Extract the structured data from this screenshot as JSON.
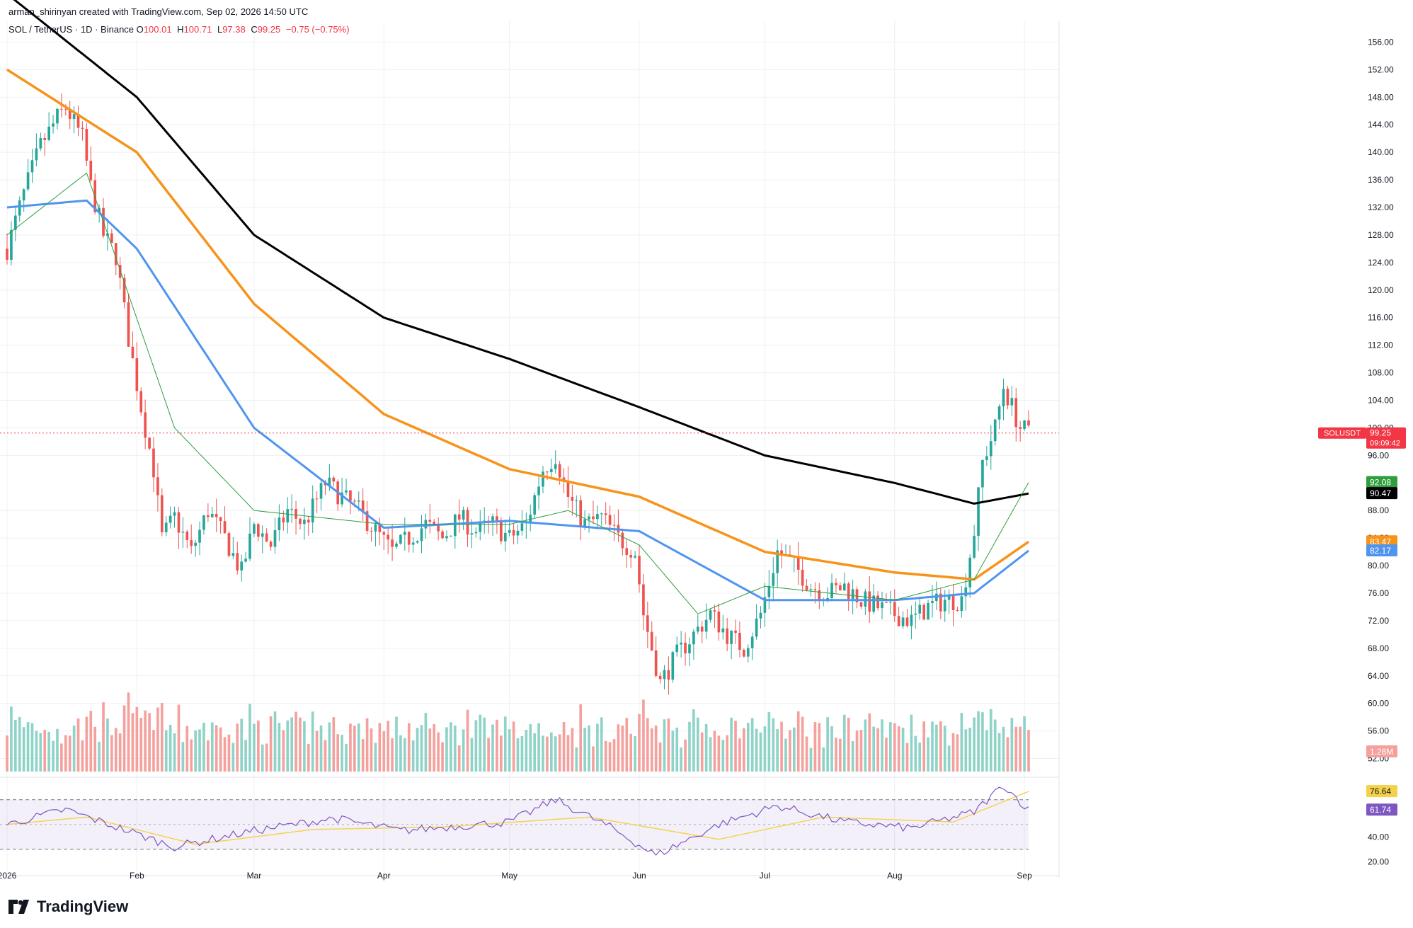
{
  "header": {
    "creator": "arman_shirinyan created with TradingView.com, Sep 02, 2026 14:50 UTC",
    "symbol": "SOL / TetherUS · 1D · Binance",
    "open_label": "O",
    "open": "100.01",
    "high_label": "H",
    "high": "100.71",
    "low_label": "L",
    "low": "97.38",
    "close_label": "C",
    "close": "99.25",
    "change": "−0.75 (−0.75%)"
  },
  "footer": {
    "brand": "TradingView",
    "logo_icon": "tradingview-logo-icon"
  },
  "colors": {
    "up": "#26a69a",
    "down": "#ef5350",
    "vol_up": "#8fd3c8",
    "vol_down": "#f4a19e",
    "ma200": "#000000",
    "ma100": "#f7931a",
    "ma50": "#4f95f0",
    "ma20": "#2e9e3e",
    "rsi": "#7e57c2",
    "rsi_ma": "#f5d14a",
    "grid": "#eef0f3"
  },
  "chart_data": {
    "type": "candlestick",
    "ylim": [
      50,
      158
    ],
    "y_ticks": [
      "156.00",
      "152.00",
      "148.00",
      "144.00",
      "140.00",
      "136.00",
      "132.00",
      "128.00",
      "124.00",
      "120.00",
      "116.00",
      "112.00",
      "108.00",
      "104.00",
      "100.00",
      "96.00",
      "88.00",
      "84.00",
      "80.00",
      "76.00",
      "72.00",
      "68.00",
      "64.00",
      "60.00",
      "56.00",
      "52.00"
    ],
    "x_ticks": [
      {
        "label": "2026",
        "date": "2026-01-01"
      },
      {
        "label": "Feb",
        "date": "2026-02-01"
      },
      {
        "label": "Mar",
        "date": "2026-03-01"
      },
      {
        "label": "Apr",
        "date": "2026-04-01"
      },
      {
        "label": "May",
        "date": "2026-05-01"
      },
      {
        "label": "Jun",
        "date": "2026-06-01"
      },
      {
        "label": "Jul",
        "date": "2026-07-01"
      },
      {
        "label": "Aug",
        "date": "2026-08-01"
      },
      {
        "label": "Sep",
        "date": "2026-09-01"
      }
    ],
    "close_path": [
      [
        "2026-01-01",
        126
      ],
      [
        "2026-01-05",
        134
      ],
      [
        "2026-01-09",
        141
      ],
      [
        "2026-01-13",
        145
      ],
      [
        "2026-01-15",
        146.5
      ],
      [
        "2026-01-19",
        142
      ],
      [
        "2026-01-21",
        135
      ],
      [
        "2026-01-24",
        128
      ],
      [
        "2026-01-27",
        125
      ],
      [
        "2026-01-30",
        113
      ],
      [
        "2026-02-02",
        103
      ],
      [
        "2026-02-05",
        94
      ],
      [
        "2026-02-07",
        84
      ],
      [
        "2026-02-10",
        87
      ],
      [
        "2026-02-14",
        82
      ],
      [
        "2026-02-18",
        88
      ],
      [
        "2026-02-22",
        84
      ],
      [
        "2026-02-26",
        79
      ],
      [
        "2026-03-01",
        86
      ],
      [
        "2026-03-05",
        83
      ],
      [
        "2026-03-09",
        88
      ],
      [
        "2026-03-13",
        86
      ],
      [
        "2026-03-18",
        92
      ],
      [
        "2026-03-22",
        90
      ],
      [
        "2026-03-26",
        88
      ],
      [
        "2026-03-30",
        85
      ],
      [
        "2026-04-03",
        82
      ],
      [
        "2026-04-07",
        84
      ],
      [
        "2026-04-11",
        86
      ],
      [
        "2026-04-15",
        84
      ],
      [
        "2026-04-19",
        87
      ],
      [
        "2026-04-23",
        85
      ],
      [
        "2026-04-27",
        86
      ],
      [
        "2026-05-01",
        84
      ],
      [
        "2026-05-05",
        86
      ],
      [
        "2026-05-09",
        94
      ],
      [
        "2026-05-12",
        96
      ],
      [
        "2026-05-15",
        90
      ],
      [
        "2026-05-19",
        86
      ],
      [
        "2026-05-23",
        87
      ],
      [
        "2026-05-27",
        84
      ],
      [
        "2026-05-31",
        82
      ],
      [
        "2026-06-02",
        73
      ],
      [
        "2026-06-04",
        68
      ],
      [
        "2026-06-06",
        63
      ],
      [
        "2026-06-10",
        67
      ],
      [
        "2026-06-14",
        70
      ],
      [
        "2026-06-18",
        73
      ],
      [
        "2026-06-22",
        70
      ],
      [
        "2026-06-26",
        68
      ],
      [
        "2026-06-30",
        73
      ],
      [
        "2026-07-04",
        82
      ],
      [
        "2026-07-08",
        80
      ],
      [
        "2026-07-12",
        77
      ],
      [
        "2026-07-16",
        76
      ],
      [
        "2026-07-20",
        77
      ],
      [
        "2026-07-24",
        75
      ],
      [
        "2026-07-28",
        74
      ],
      [
        "2026-08-01",
        73
      ],
      [
        "2026-08-05",
        72
      ],
      [
        "2026-08-09",
        74
      ],
      [
        "2026-08-13",
        75
      ],
      [
        "2026-08-17",
        75
      ],
      [
        "2026-08-20",
        85
      ],
      [
        "2026-08-22",
        95
      ],
      [
        "2026-08-25",
        100
      ],
      [
        "2026-08-27",
        106
      ],
      [
        "2026-08-29",
        103
      ],
      [
        "2026-08-31",
        100
      ],
      [
        "2026-09-02",
        99.25
      ]
    ],
    "ma200_path": [
      [
        "2026-01-01",
        163
      ],
      [
        "2026-02-01",
        148
      ],
      [
        "2026-03-01",
        128
      ],
      [
        "2026-04-01",
        116
      ],
      [
        "2026-05-01",
        110
      ],
      [
        "2026-06-01",
        103
      ],
      [
        "2026-07-01",
        96
      ],
      [
        "2026-08-01",
        92
      ],
      [
        "2026-08-20",
        89
      ],
      [
        "2026-09-02",
        90.47
      ]
    ],
    "ma100_path": [
      [
        "2026-01-01",
        152
      ],
      [
        "2026-02-01",
        140
      ],
      [
        "2026-03-01",
        118
      ],
      [
        "2026-04-01",
        102
      ],
      [
        "2026-05-01",
        94
      ],
      [
        "2026-06-01",
        90
      ],
      [
        "2026-07-01",
        82
      ],
      [
        "2026-08-01",
        79
      ],
      [
        "2026-08-20",
        78
      ],
      [
        "2026-09-02",
        83.47
      ]
    ],
    "ma50_path": [
      [
        "2026-01-01",
        132
      ],
      [
        "2026-01-20",
        133
      ],
      [
        "2026-02-01",
        126
      ],
      [
        "2026-03-01",
        100
      ],
      [
        "2026-04-01",
        85.5
      ],
      [
        "2026-05-01",
        86.5
      ],
      [
        "2026-06-01",
        85
      ],
      [
        "2026-07-01",
        75
      ],
      [
        "2026-08-01",
        75
      ],
      [
        "2026-08-20",
        76
      ],
      [
        "2026-09-02",
        82.17
      ]
    ],
    "ma20_path": [
      [
        "2026-01-01",
        128
      ],
      [
        "2026-01-20",
        137
      ],
      [
        "2026-02-10",
        100
      ],
      [
        "2026-03-01",
        88
      ],
      [
        "2026-04-01",
        86
      ],
      [
        "2026-05-01",
        86
      ],
      [
        "2026-05-15",
        88
      ],
      [
        "2026-06-01",
        83
      ],
      [
        "2026-06-15",
        73
      ],
      [
        "2026-07-01",
        77
      ],
      [
        "2026-08-01",
        75
      ],
      [
        "2026-08-20",
        78
      ],
      [
        "2026-09-02",
        92.08
      ]
    ],
    "volume": {
      "max_label_value": "1.28M"
    },
    "rsi": {
      "ylim": [
        15,
        95
      ],
      "ticks": [
        "40.00",
        "20.00"
      ],
      "upper_band": 70,
      "lower_band": 30,
      "path": [
        [
          "2026-01-01",
          50
        ],
        [
          "2026-01-15",
          62
        ],
        [
          "2026-02-03",
          40
        ],
        [
          "2026-02-10",
          32
        ],
        [
          "2026-03-01",
          45
        ],
        [
          "2026-03-20",
          55
        ],
        [
          "2026-04-05",
          45
        ],
        [
          "2026-05-01",
          52
        ],
        [
          "2026-05-12",
          70
        ],
        [
          "2026-05-25",
          48
        ],
        [
          "2026-06-05",
          25
        ],
        [
          "2026-06-20",
          50
        ],
        [
          "2026-07-04",
          65
        ],
        [
          "2026-07-20",
          52
        ],
        [
          "2026-08-05",
          47
        ],
        [
          "2026-08-20",
          60
        ],
        [
          "2026-08-27",
          82
        ],
        [
          "2026-09-02",
          61.74
        ]
      ],
      "ma_path": [
        [
          "2026-01-01",
          50
        ],
        [
          "2026-01-20",
          56
        ],
        [
          "2026-02-15",
          34
        ],
        [
          "2026-03-15",
          46
        ],
        [
          "2026-04-15",
          48
        ],
        [
          "2026-05-20",
          56
        ],
        [
          "2026-06-20",
          38
        ],
        [
          "2026-07-15",
          56
        ],
        [
          "2026-08-15",
          52
        ],
        [
          "2026-09-02",
          76.64
        ]
      ]
    },
    "price_labels": [
      {
        "name": "last-price",
        "text": "SOLUSDT",
        "value": "99.25",
        "sub": "09:09:42",
        "price": 99.25,
        "bg": "#f23645"
      },
      {
        "name": "ma20",
        "value": "92.08",
        "price": 92.08,
        "bg": "#2e9e3e"
      },
      {
        "name": "ma200",
        "value": "90.47",
        "price": 90.47,
        "bg": "#000000"
      },
      {
        "name": "ma100",
        "value": "83.47",
        "price": 83.47,
        "bg": "#f7931a"
      },
      {
        "name": "ma50",
        "value": "82.17",
        "price": 82.17,
        "bg": "#4f95f0"
      }
    ],
    "rsi_labels": [
      {
        "name": "rsi-ma",
        "value": "76.64",
        "rsi": 76.64,
        "bg": "#f5d14a",
        "fg": "#131722"
      },
      {
        "name": "rsi",
        "value": "61.74",
        "rsi": 61.74,
        "bg": "#7e57c2",
        "fg": "#ffffff"
      }
    ]
  }
}
